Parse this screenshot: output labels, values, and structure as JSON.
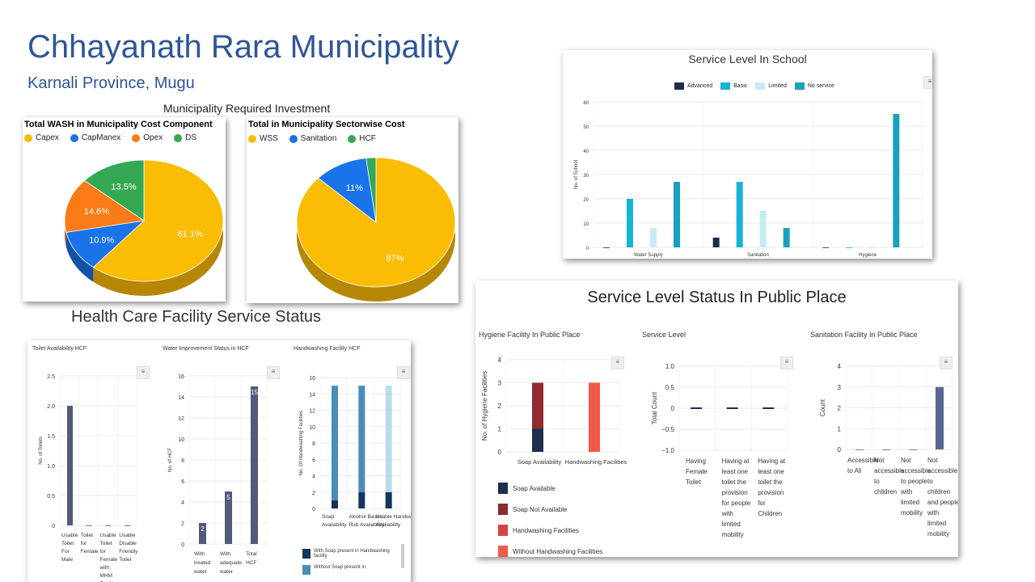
{
  "header": {
    "title": "Chhayanath Rara Municipality",
    "subtitle": "Karnali Province, Mugu",
    "investment_heading": "Municipality Required Investment",
    "hcf_heading": "Health Care Facility Service Status"
  },
  "chart_data": [
    {
      "id": "wash-cost",
      "type": "pie",
      "title": "Total WASH in Municipality Cost Component",
      "legend": [
        "Capex",
        "CapManex",
        "Opex",
        "DS"
      ],
      "values": [
        61.1,
        10.9,
        14.6,
        13.5
      ],
      "labels": [
        "61.1%",
        "10.9%",
        "14.6%",
        "13.5%"
      ],
      "colors": [
        "#fbbc04",
        "#1a73e8",
        "#fa7b17",
        "#34a853"
      ]
    },
    {
      "id": "sector-cost",
      "type": "pie",
      "title": "Total in Municipality Sectorwise Cost",
      "legend": [
        "WSS",
        "Sanitation",
        "HCF"
      ],
      "values": [
        87,
        11,
        2
      ],
      "labels": [
        "87%",
        "11%",
        ""
      ],
      "colors": [
        "#fbbc04",
        "#1a73e8",
        "#34a853"
      ]
    },
    {
      "id": "school",
      "type": "bar",
      "title": "Service Level In School",
      "ylabel": "No. of School",
      "categories": [
        "Water Supply",
        "Sanitation",
        "Hygiene"
      ],
      "ylim": [
        0,
        60
      ],
      "yticks": [
        "0",
        "10",
        "20",
        "30",
        "40",
        "50",
        "60"
      ],
      "series": [
        {
          "name": "Advanced",
          "color": "#1f2b4d",
          "values": [
            0,
            4,
            0
          ]
        },
        {
          "name": "Basic",
          "color": "#17b3d6",
          "values": [
            20,
            27,
            0
          ]
        },
        {
          "name": "Limited",
          "color": "#c4ecf6",
          "values": [
            8,
            15,
            0
          ]
        },
        {
          "name": "No service",
          "color": "#1aa0bd",
          "values": [
            27,
            8,
            55
          ]
        }
      ]
    },
    {
      "id": "toilet-hcf",
      "type": "bar",
      "title": "Toilet Availability HCF",
      "ylabel": "No. of Toilets",
      "categories": [
        "Usable Toilet For Male",
        "Toilet for Female",
        "Usable Toilet for Female with MHM Facility",
        "Usable Disable Friendly Toilet"
      ],
      "yticks": [
        "0",
        "0.5",
        "1.0",
        "1.5",
        "2.0",
        "2.5"
      ],
      "ylim": [
        0,
        2.5
      ],
      "values": [
        2,
        0,
        0,
        0
      ],
      "color": "#525a7a"
    },
    {
      "id": "water-hcf",
      "type": "bar",
      "title": "Water Improvement Status in HCF",
      "ylabel": "No. of HCF",
      "categories": [
        "With treated water",
        "With adequate water",
        "Total HCF"
      ],
      "yticks": [
        "0",
        "2",
        "4",
        "6",
        "8",
        "10",
        "12",
        "14",
        "16"
      ],
      "ylim": [
        0,
        16
      ],
      "values": [
        2,
        5,
        15
      ],
      "data_labels": [
        "2",
        "5",
        "15"
      ],
      "color": "#525a7a"
    },
    {
      "id": "handwash-hcf",
      "type": "bar",
      "title": "Handwashing Facility HCF",
      "ylabel": "No. Of Handwashing Facilities",
      "categories": [
        "Soap Availability",
        "Alcohol Based Rub Availability",
        "Usable Handwashing Availability"
      ],
      "yticks": [
        "0",
        "2",
        "4",
        "6",
        "8",
        "10",
        "12",
        "14",
        "16"
      ],
      "ylim": [
        0,
        16
      ],
      "series": [
        {
          "name": "With Soap present in Handwashing facility",
          "color": "#14345c",
          "values": [
            1,
            2,
            2
          ]
        },
        {
          "name": "Without Soap present in",
          "color": "#4a8db7",
          "values": [
            14,
            13,
            0
          ]
        },
        {
          "name": "",
          "color": "#b7dce9",
          "values": [
            0,
            0,
            13
          ]
        }
      ]
    },
    {
      "id": "hygiene-public",
      "type": "bar",
      "title": "Hygiene Facility In Public Place",
      "ylabel": "No. of Hygiene Facilities",
      "categories": [
        "Soap Availability",
        "Handwashing Facilities"
      ],
      "yticks": [
        "0",
        "1",
        "2",
        "3",
        "4"
      ],
      "ylim": [
        0,
        4
      ],
      "series": [
        {
          "name": "Soap Available",
          "color": "#1f2d4f",
          "values": [
            1,
            0
          ]
        },
        {
          "name": "Soap Not Available",
          "color": "#8f2a2e",
          "values": [
            2,
            0
          ]
        },
        {
          "name": "Handwashing Facilities",
          "color": "#d9433f",
          "values": [
            0,
            0
          ]
        },
        {
          "name": "Without Handwashing Facilities",
          "color": "#ef5a4a",
          "values": [
            0,
            3
          ]
        }
      ]
    },
    {
      "id": "service-public",
      "type": "bar",
      "title": "Service Level",
      "ylabel": "Total Count",
      "categories": [
        "Having Female Toilet",
        "Having at least one toilet the provision for people with limited mobility",
        "Having at least one toilet the provision for Children"
      ],
      "yticks": [
        "−1.0",
        "−0.5",
        "0",
        "0.5",
        "1.0"
      ],
      "ylim": [
        -1,
        1
      ],
      "values": [
        0,
        0,
        0
      ]
    },
    {
      "id": "sanitation-public",
      "type": "bar",
      "title": "Sanitation Facility In Public Place",
      "ylabel": "Count",
      "categories": [
        "Accessible to All",
        "Not accessible to children",
        "Not accessible to people with limited mobility",
        "Not accessible to children and people with limited mobility"
      ],
      "yticks": [
        "0",
        "1",
        "2",
        "3",
        "4"
      ],
      "ylim": [
        0,
        4
      ],
      "values": [
        0,
        0,
        0,
        3
      ],
      "color": "#5a6890"
    }
  ],
  "public_panel": {
    "title": "Service Level Status In Public Place"
  },
  "menu_glyph": "≡"
}
